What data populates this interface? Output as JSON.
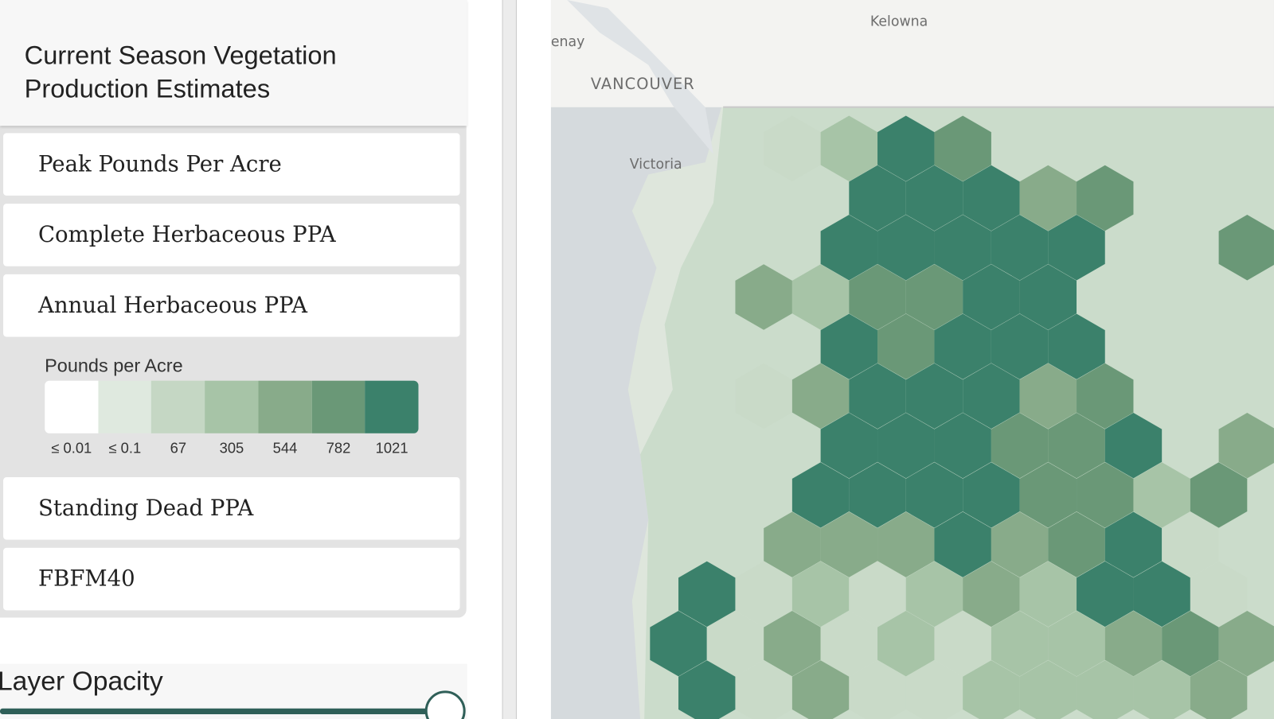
{
  "panel": {
    "title_lines": [
      "Current Season Vegetation",
      "Production Estimates"
    ],
    "items": [
      "Peak Pounds Per Acre",
      "Complete Herbaceous PPA",
      "Annual Herbaceous PPA",
      "Standing Dead PPA",
      "FBFM40"
    ],
    "legend": {
      "title": "Pounds per Acre",
      "entries": [
        {
          "label": "≤ 0.01",
          "color": "#ffffff"
        },
        {
          "label": "≤ 0.1",
          "color": "#dfe9df"
        },
        {
          "label": "67",
          "color": "#c5d7c4"
        },
        {
          "label": "305",
          "color": "#a7c4a7"
        },
        {
          "label": "544",
          "color": "#88ab8a"
        },
        {
          "label": "782",
          "color": "#6a9877"
        },
        {
          "label": "1021",
          "color": "#3b816b"
        }
      ]
    }
  },
  "opacity": {
    "title": "Layer Opacity"
  },
  "map": {
    "labels": [
      "Kelowna",
      "enay",
      "VANCOUVER",
      "Victoria"
    ]
  }
}
